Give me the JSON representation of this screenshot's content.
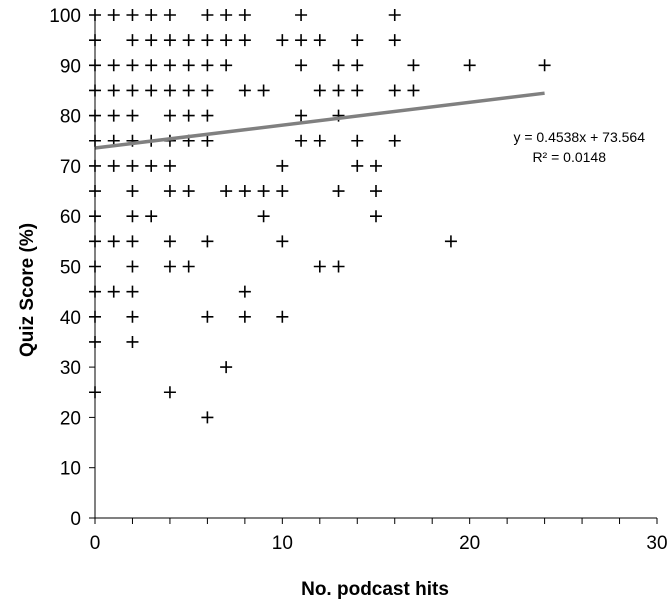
{
  "chart_data": {
    "type": "scatter",
    "title": "",
    "xlabel": "No. podcast hits",
    "ylabel": "Quiz Score (%)",
    "xlim": [
      0,
      30
    ],
    "ylim": [
      0,
      100
    ],
    "xticks": [
      "0",
      "10",
      "20",
      "30"
    ],
    "yticks": [
      "0",
      "10",
      "20",
      "30",
      "40",
      "50",
      "60",
      "70",
      "80",
      "90",
      "100"
    ],
    "grid": false,
    "legend": "none",
    "marker": "plus",
    "marker_color": "#000000",
    "trendline": {
      "type": "linear",
      "slope": 0.4538,
      "intercept": 73.564,
      "x_range": [
        0,
        24
      ],
      "color": "#808080"
    },
    "annotations": [
      "y = 0.4538x + 73.564",
      "R² = 0.0148"
    ],
    "points": [
      [
        0,
        100
      ],
      [
        1,
        100
      ],
      [
        2,
        100
      ],
      [
        3,
        100
      ],
      [
        4,
        100
      ],
      [
        6,
        100
      ],
      [
        7,
        100
      ],
      [
        8,
        100
      ],
      [
        11,
        100
      ],
      [
        16,
        100
      ],
      [
        0,
        95
      ],
      [
        2,
        95
      ],
      [
        3,
        95
      ],
      [
        4,
        95
      ],
      [
        5,
        95
      ],
      [
        6,
        95
      ],
      [
        7,
        95
      ],
      [
        8,
        95
      ],
      [
        10,
        95
      ],
      [
        11,
        95
      ],
      [
        12,
        95
      ],
      [
        14,
        95
      ],
      [
        16,
        95
      ],
      [
        0,
        90
      ],
      [
        1,
        90
      ],
      [
        2,
        90
      ],
      [
        3,
        90
      ],
      [
        4,
        90
      ],
      [
        5,
        90
      ],
      [
        6,
        90
      ],
      [
        7,
        90
      ],
      [
        11,
        90
      ],
      [
        13,
        90
      ],
      [
        14,
        90
      ],
      [
        17,
        90
      ],
      [
        20,
        90
      ],
      [
        24,
        90
      ],
      [
        0,
        85
      ],
      [
        1,
        85
      ],
      [
        2,
        85
      ],
      [
        3,
        85
      ],
      [
        4,
        85
      ],
      [
        5,
        85
      ],
      [
        6,
        85
      ],
      [
        8,
        85
      ],
      [
        9,
        85
      ],
      [
        12,
        85
      ],
      [
        13,
        85
      ],
      [
        14,
        85
      ],
      [
        16,
        85
      ],
      [
        17,
        85
      ],
      [
        0,
        80
      ],
      [
        1,
        80
      ],
      [
        2,
        80
      ],
      [
        4,
        80
      ],
      [
        5,
        80
      ],
      [
        6,
        80
      ],
      [
        11,
        80
      ],
      [
        13,
        80
      ],
      [
        0,
        75
      ],
      [
        1,
        75
      ],
      [
        2,
        75
      ],
      [
        3,
        75
      ],
      [
        4,
        75
      ],
      [
        5,
        75
      ],
      [
        6,
        75
      ],
      [
        11,
        75
      ],
      [
        12,
        75
      ],
      [
        14,
        75
      ],
      [
        16,
        75
      ],
      [
        0,
        70
      ],
      [
        1,
        70
      ],
      [
        2,
        70
      ],
      [
        3,
        70
      ],
      [
        4,
        70
      ],
      [
        10,
        70
      ],
      [
        14,
        70
      ],
      [
        15,
        70
      ],
      [
        0,
        65
      ],
      [
        2,
        65
      ],
      [
        4,
        65
      ],
      [
        5,
        65
      ],
      [
        7,
        65
      ],
      [
        8,
        65
      ],
      [
        9,
        65
      ],
      [
        10,
        65
      ],
      [
        13,
        65
      ],
      [
        15,
        65
      ],
      [
        0,
        60
      ],
      [
        2,
        60
      ],
      [
        3,
        60
      ],
      [
        9,
        60
      ],
      [
        15,
        60
      ],
      [
        0,
        55
      ],
      [
        1,
        55
      ],
      [
        2,
        55
      ],
      [
        4,
        55
      ],
      [
        6,
        55
      ],
      [
        10,
        55
      ],
      [
        19,
        55
      ],
      [
        0,
        50
      ],
      [
        2,
        50
      ],
      [
        4,
        50
      ],
      [
        5,
        50
      ],
      [
        12,
        50
      ],
      [
        13,
        50
      ],
      [
        0,
        45
      ],
      [
        1,
        45
      ],
      [
        2,
        45
      ],
      [
        8,
        45
      ],
      [
        0,
        40
      ],
      [
        2,
        40
      ],
      [
        6,
        40
      ],
      [
        8,
        40
      ],
      [
        10,
        40
      ],
      [
        0,
        35
      ],
      [
        2,
        35
      ],
      [
        7,
        30
      ],
      [
        0,
        25
      ],
      [
        4,
        25
      ],
      [
        6,
        20
      ]
    ]
  }
}
